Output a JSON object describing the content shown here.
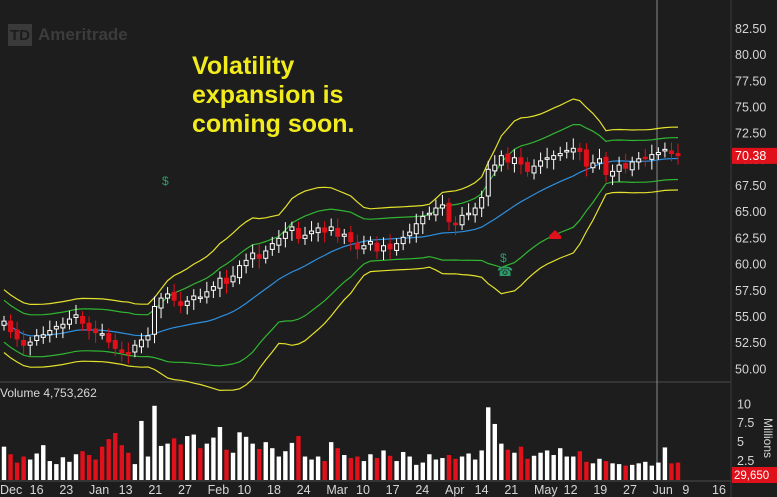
{
  "brand": {
    "logo_mark": "TD",
    "name": "Ameritrade"
  },
  "annotation": "Volatility\nexpansion is\ncoming soon.",
  "volume_label": "Volume 4,753,262",
  "colors": {
    "background": "#1d1d1d",
    "up": "#ffffff",
    "down": "#e0111a",
    "middle_band": "#2d8fe0",
    "inner_band": "#30b631",
    "outer_band": "#e3e12c",
    "annotation": "#f2ec1c",
    "last_price_bg": "#e0111a"
  },
  "chart_data": [
    {
      "type": "candlestick",
      "y_axis_labels": [
        "82.50",
        "80.00",
        "77.50",
        "75.00",
        "72.50",
        "70.00",
        "67.50",
        "65.00",
        "62.50",
        "60.00",
        "57.50",
        "55.00",
        "52.50",
        "50.00"
      ],
      "ylim": [
        48.5,
        84.5
      ],
      "last_price": "70.38",
      "x_ticks": [
        "Dec",
        "16",
        "23",
        "Jan",
        "13",
        "21",
        "27",
        "Feb",
        "10",
        "18",
        "24",
        "Mar",
        "10",
        "17",
        "24",
        "Apr",
        "14",
        "21",
        "May",
        "12",
        "19",
        "27",
        "Jun",
        "9",
        "16"
      ],
      "grid": false,
      "close": [
        54.6,
        53.6,
        52.9,
        52.3,
        52.6,
        53.2,
        53.3,
        53.7,
        54.1,
        54.3,
        54.8,
        55.2,
        54.4,
        53.7,
        53.5,
        53.4,
        52.6,
        52.0,
        51.6,
        51.5,
        52.3,
        52.8,
        53.2,
        56.0,
        56.8,
        57.2,
        56.6,
        56.1,
        56.5,
        57.0,
        56.9,
        57.4,
        57.9,
        58.7,
        58.2,
        58.9,
        59.9,
        60.4,
        61.1,
        60.6,
        61.3,
        62.0,
        62.5,
        63.1,
        63.6,
        62.5,
        62.8,
        63.2,
        63.5,
        63.1,
        63.6,
        62.7,
        62.9,
        62.2,
        61.5,
        61.8,
        62.2,
        61.3,
        61.8,
        61.5,
        62.0,
        62.6,
        63.1,
        63.9,
        64.6,
        64.9,
        65.4,
        65.7,
        64.1,
        63.8,
        64.7,
        64.9,
        65.4,
        66.4,
        69.1,
        69.5,
        70.4,
        69.8,
        70.2,
        69.6,
        68.9,
        69.4,
        69.9,
        70.2,
        70.4,
        70.6,
        70.9,
        71.1,
        70.8,
        69.4,
        69.7,
        70.1,
        68.6,
        68.9,
        69.5,
        69.2,
        69.8,
        70.1,
        70.2,
        70.5,
        70.7,
        71.0,
        70.6,
        70.4
      ],
      "volume": {
        "unit": "Millions",
        "y_axis_labels": [
          "10",
          "7.5",
          "5",
          "2.5"
        ],
        "ylim": [
          0,
          10.3
        ],
        "last": "29,650",
        "values": [
          4.4,
          3.4,
          2.3,
          3.1,
          2.7,
          3.5,
          4.6,
          2.5,
          2.1,
          3.0,
          2.4,
          3.4,
          3.8,
          3.3,
          2.7,
          4.4,
          5.4,
          6.2,
          4.6,
          3.6,
          2.1,
          7.8,
          3.1,
          9.8,
          4.5,
          4.8,
          5.5,
          4.7,
          5.8,
          6.0,
          4.2,
          4.8,
          5.6,
          7.0,
          4.0,
          3.6,
          6.3,
          5.7,
          4.8,
          4.1,
          5.0,
          4.2,
          3.1,
          3.8,
          4.9,
          5.8,
          3.1,
          2.7,
          3.1,
          2.5,
          5.0,
          4.2,
          3.3,
          2.9,
          3.1,
          2.5,
          3.4,
          2.9,
          3.9,
          3.2,
          2.5,
          3.7,
          3.1,
          2.0,
          2.3,
          3.4,
          2.7,
          2.9,
          3.3,
          2.8,
          3.1,
          3.5,
          2.7,
          3.9,
          9.6,
          7.4,
          4.8,
          4.0,
          3.6,
          4.4,
          2.8,
          3.2,
          3.6,
          3.9,
          3.3,
          4.2,
          3.1,
          3.1,
          3.8,
          2.4,
          2.2,
          2.8,
          2.5,
          2.2,
          2.1,
          1.9,
          2.0,
          2.2,
          2.4,
          1.9,
          2.3,
          4.3,
          2.2,
          2.3
        ]
      }
    }
  ],
  "markers": {
    "dividend_glyph": "$",
    "earnings_glyph": "☎"
  }
}
